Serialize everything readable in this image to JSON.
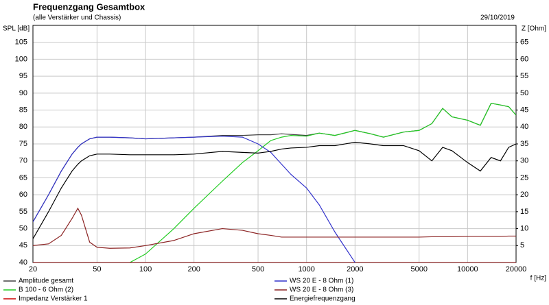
{
  "chart_data": {
    "type": "line",
    "title": "Frequenzgang Gesamtbox",
    "subtitle": "(alle Verstärker und Chassis)",
    "date": "29/10/2019",
    "y_label": "SPL [dB]",
    "y2_label": "Z [Ohm]",
    "x_label": "f [Hz]",
    "x_scale": "log",
    "grid": true,
    "legend": "bottom",
    "xlim": [
      20,
      20000
    ],
    "xticks": [
      20,
      50,
      100,
      200,
      500,
      1000,
      2000,
      5000,
      10000,
      20000
    ],
    "ylim": [
      40,
      110
    ],
    "yticks": [
      40,
      45,
      50,
      55,
      60,
      65,
      70,
      75,
      80,
      85,
      90,
      95,
      100,
      105
    ],
    "y2lim": [
      0,
      70
    ],
    "y2ticks": [
      5,
      10,
      15,
      20,
      25,
      30,
      35,
      40,
      45,
      50,
      55,
      60,
      65
    ],
    "x": [
      20,
      25,
      30,
      35,
      38,
      40,
      45,
      50,
      60,
      80,
      100,
      150,
      200,
      300,
      400,
      500,
      600,
      700,
      800,
      1000,
      1200,
      1500,
      2000,
      2500,
      3000,
      4000,
      5000,
      6000,
      7000,
      8000,
      10000,
      12000,
      14000,
      16000,
      18000,
      20000
    ],
    "series": [
      {
        "name": "Amplitude gesamt",
        "color": "#404040",
        "values": [
          52,
          60,
          67,
          72,
          74,
          75,
          76.5,
          77,
          77,
          76.8,
          76.5,
          76.8,
          77,
          77.5,
          77.5,
          77.7,
          77.7,
          78,
          77.8,
          77.5,
          78.2,
          77.5,
          79,
          78,
          77,
          78.5,
          79,
          81,
          85.5,
          83,
          82,
          80.5,
          87,
          86.5,
          86,
          83.5
        ]
      },
      {
        "name": "B 100 - 6 Ohm (2)",
        "color": "#22cc22",
        "values": [
          null,
          null,
          null,
          null,
          null,
          null,
          null,
          null,
          null,
          40,
          42.5,
          50,
          56,
          64,
          69.5,
          73,
          76,
          77,
          77.5,
          77.3,
          78.2,
          77.5,
          79,
          78,
          77,
          78.5,
          79,
          81,
          85.5,
          83,
          82,
          80.5,
          87,
          86.5,
          86,
          83.5
        ]
      },
      {
        "name": "Impedanz Verstärker 1",
        "color": "#cc0000",
        "axis": "y2",
        "values": [
          0,
          0,
          0,
          0,
          0,
          0,
          0,
          0,
          0,
          0,
          0,
          0,
          0,
          0,
          0,
          0,
          0,
          0,
          0,
          0,
          0,
          0,
          0,
          0,
          0,
          0,
          0,
          0,
          0,
          0,
          0,
          0,
          0,
          0,
          0,
          0
        ]
      },
      {
        "name": "WS 20 E - 8 Ohm  (1)",
        "color": "#3333cc",
        "values": [
          52,
          60,
          67,
          72,
          74,
          75,
          76.5,
          77,
          77,
          76.8,
          76.5,
          76.8,
          77,
          77.3,
          77,
          75,
          72.5,
          69,
          66,
          62,
          57,
          49,
          40,
          null,
          null,
          null,
          null,
          null,
          null,
          null,
          null,
          null,
          null,
          null,
          null,
          null
        ]
      },
      {
        "name": "WS 20 E - 8 Ohm  (3)",
        "color": "#8b2222",
        "axis": "y2",
        "values": [
          5,
          5.5,
          8,
          13,
          16,
          14,
          6,
          4.5,
          4.2,
          4.3,
          5,
          6.5,
          8.5,
          10,
          9.5,
          8.5,
          8,
          7.5,
          7.5,
          7.5,
          7.5,
          7.5,
          7.5,
          7.5,
          7.5,
          7.5,
          7.5,
          7.6,
          7.6,
          7.6,
          7.7,
          7.7,
          7.7,
          7.7,
          7.8,
          7.8
        ]
      },
      {
        "name": "Energiefrequenzgang",
        "color": "#000000",
        "values": [
          47,
          55,
          62,
          67,
          69,
          70,
          71.5,
          72,
          72,
          71.8,
          71.8,
          71.8,
          72,
          72.8,
          72.5,
          72.3,
          72.8,
          73.5,
          73.8,
          74,
          74.5,
          74.5,
          75.5,
          75,
          74.5,
          74.5,
          73,
          70,
          74,
          73,
          69.5,
          67,
          71,
          70,
          74,
          75
        ]
      }
    ]
  }
}
